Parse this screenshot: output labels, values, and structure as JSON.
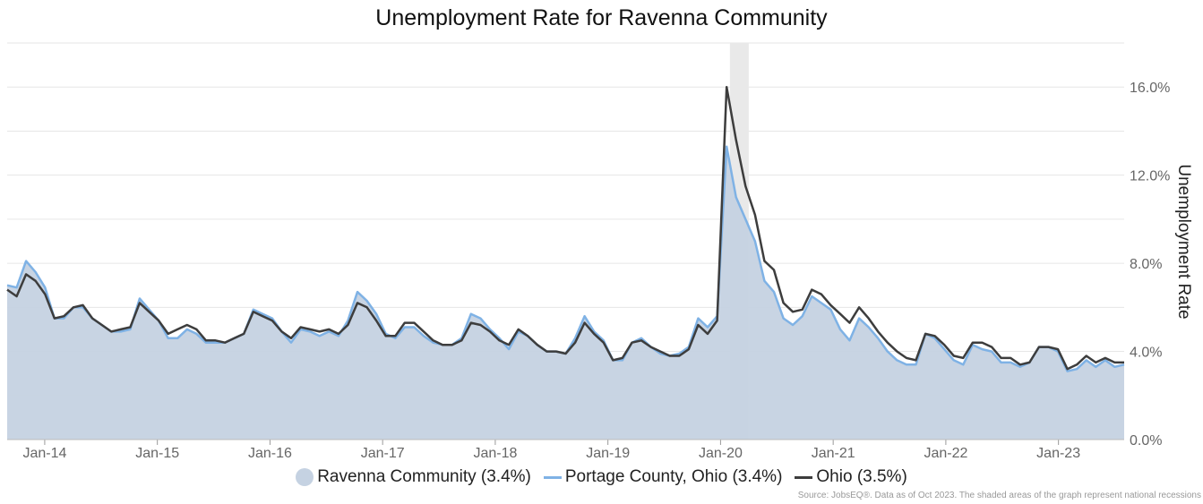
{
  "title": "Unemployment Rate for Ravenna Community",
  "source": "Source: JobsEQ®. Data as of Oct 2023. The shaded areas of the graph represent national recessions",
  "legend": [
    {
      "label": "Ravenna Community (3.4%)",
      "color": "#c5d2e2",
      "kind": "dot"
    },
    {
      "label": "Portage County, Ohio (3.4%)",
      "color": "#7fb2e5",
      "kind": "line"
    },
    {
      "label": "Ohio (3.5%)",
      "color": "#3d3d3d",
      "kind": "line"
    }
  ],
  "chart_data": {
    "type": "area",
    "ylabel": "Unemployment Rate",
    "ylim": [
      0,
      18
    ],
    "yticks": [
      0,
      4,
      8,
      12,
      16
    ],
    "ytick_labels": [
      "0.0%",
      "4.0%",
      "8.0%",
      "12.0%",
      "16.0%"
    ],
    "xticks": [
      "Jan-14",
      "Jan-15",
      "Jan-16",
      "Jan-17",
      "Jan-18",
      "Jan-19",
      "Jan-20",
      "Jan-21",
      "Jan-22",
      "Jan-23"
    ],
    "x_start": "Sep-13",
    "x_end": "Aug-23",
    "recession": {
      "start": "Feb-20",
      "end": "Apr-20"
    },
    "grid": true,
    "legend_position": "bottom",
    "series": [
      {
        "name": "Ravenna Community",
        "type": "area",
        "color": "#c5d2e2",
        "values": [
          7.0,
          6.9,
          8.1,
          7.6,
          6.9,
          5.5,
          5.5,
          6.0,
          6.0,
          5.5,
          5.2,
          4.9,
          4.9,
          5.0,
          6.4,
          5.9,
          5.4,
          4.6,
          4.6,
          5.0,
          4.8,
          4.4,
          4.4,
          4.4,
          4.6,
          4.8,
          5.9,
          5.7,
          5.5,
          4.9,
          4.4,
          5.0,
          4.9,
          4.7,
          4.9,
          4.7,
          5.4,
          6.7,
          6.3,
          5.7,
          4.8,
          4.6,
          5.1,
          5.1,
          4.7,
          4.4,
          4.3,
          4.3,
          4.6,
          5.7,
          5.5,
          5.0,
          4.6,
          4.1,
          4.9,
          4.7,
          4.3,
          4.0,
          4.0,
          3.9,
          4.6,
          5.6,
          4.9,
          4.5,
          3.6,
          3.6,
          4.4,
          4.6,
          4.2,
          3.9,
          3.8,
          3.9,
          4.2,
          5.5,
          5.1,
          5.6,
          13.3,
          11.0,
          10.0,
          9.0,
          7.2,
          6.7,
          5.5,
          5.2,
          5.6,
          6.5,
          6.2,
          5.9,
          5.0,
          4.5,
          5.5,
          5.1,
          4.6,
          4.0,
          3.6,
          3.4,
          3.4,
          4.8,
          4.6,
          4.1,
          3.6,
          3.4,
          4.3,
          4.1,
          4.0,
          3.5,
          3.5,
          3.3,
          3.5,
          4.2,
          4.2,
          4.0,
          3.1,
          3.2,
          3.6,
          3.3,
          3.6,
          3.3,
          3.4
        ]
      },
      {
        "name": "Portage County, Ohio",
        "type": "line",
        "color": "#7fb2e5",
        "values": [
          7.0,
          6.9,
          8.1,
          7.6,
          6.9,
          5.5,
          5.5,
          6.0,
          6.0,
          5.5,
          5.2,
          4.9,
          4.9,
          5.0,
          6.4,
          5.9,
          5.4,
          4.6,
          4.6,
          5.0,
          4.8,
          4.4,
          4.4,
          4.4,
          4.6,
          4.8,
          5.9,
          5.7,
          5.5,
          4.9,
          4.4,
          5.0,
          4.9,
          4.7,
          4.9,
          4.7,
          5.4,
          6.7,
          6.3,
          5.7,
          4.8,
          4.6,
          5.1,
          5.1,
          4.7,
          4.4,
          4.3,
          4.3,
          4.6,
          5.7,
          5.5,
          5.0,
          4.6,
          4.1,
          4.9,
          4.7,
          4.3,
          4.0,
          4.0,
          3.9,
          4.6,
          5.6,
          4.9,
          4.5,
          3.6,
          3.6,
          4.4,
          4.6,
          4.2,
          3.9,
          3.8,
          3.9,
          4.2,
          5.5,
          5.1,
          5.6,
          13.3,
          11.0,
          10.0,
          9.0,
          7.2,
          6.7,
          5.5,
          5.2,
          5.6,
          6.5,
          6.2,
          5.9,
          5.0,
          4.5,
          5.5,
          5.1,
          4.6,
          4.0,
          3.6,
          3.4,
          3.4,
          4.8,
          4.6,
          4.1,
          3.6,
          3.4,
          4.3,
          4.1,
          4.0,
          3.5,
          3.5,
          3.3,
          3.5,
          4.2,
          4.2,
          4.0,
          3.1,
          3.2,
          3.6,
          3.3,
          3.6,
          3.3,
          3.4
        ]
      },
      {
        "name": "Ohio",
        "type": "line",
        "color": "#3d3d3d",
        "values": [
          6.8,
          6.5,
          7.5,
          7.2,
          6.6,
          5.5,
          5.6,
          6.0,
          6.1,
          5.5,
          5.2,
          4.9,
          5.0,
          5.1,
          6.2,
          5.8,
          5.4,
          4.8,
          5.0,
          5.2,
          5.0,
          4.5,
          4.5,
          4.4,
          4.6,
          4.8,
          5.8,
          5.6,
          5.4,
          4.9,
          4.6,
          5.1,
          5.0,
          4.9,
          5.0,
          4.8,
          5.2,
          6.2,
          6.0,
          5.4,
          4.7,
          4.7,
          5.3,
          5.3,
          4.9,
          4.5,
          4.3,
          4.3,
          4.5,
          5.3,
          5.2,
          4.9,
          4.5,
          4.3,
          5.0,
          4.7,
          4.3,
          4.0,
          4.0,
          3.9,
          4.4,
          5.3,
          4.8,
          4.4,
          3.6,
          3.7,
          4.4,
          4.5,
          4.2,
          4.0,
          3.8,
          3.8,
          4.1,
          5.2,
          4.8,
          5.4,
          16.0,
          13.6,
          11.5,
          10.2,
          8.1,
          7.7,
          6.2,
          5.8,
          5.9,
          6.8,
          6.6,
          6.1,
          5.7,
          5.3,
          6.0,
          5.5,
          4.9,
          4.4,
          4.0,
          3.7,
          3.6,
          4.8,
          4.7,
          4.3,
          3.8,
          3.7,
          4.4,
          4.4,
          4.2,
          3.7,
          3.7,
          3.4,
          3.5,
          4.2,
          4.2,
          4.1,
          3.2,
          3.4,
          3.8,
          3.5,
          3.7,
          3.5,
          3.5
        ]
      }
    ]
  }
}
